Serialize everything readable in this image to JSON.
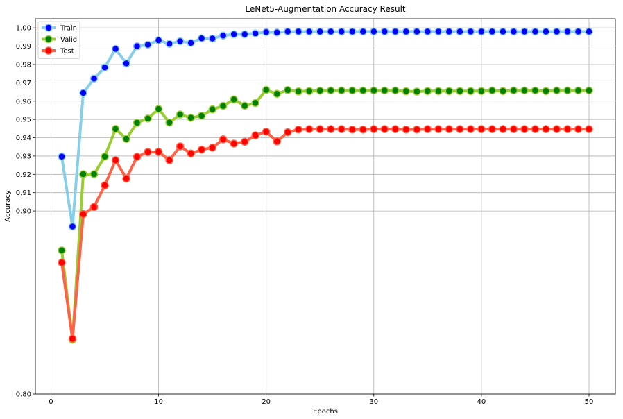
{
  "chart_data": {
    "type": "line",
    "title": "LeNet5-Augmentation Accuracy Result",
    "xlabel": "Epochs",
    "ylabel": "Accuracy",
    "xlim": [
      -1.45,
      52.45
    ],
    "ylim": [
      0.8,
      1.005
    ],
    "xticks": [
      0,
      10,
      20,
      30,
      40,
      50
    ],
    "xtick_labels": [
      "0",
      "10",
      "20",
      "30",
      "40",
      "50"
    ],
    "yticks": [
      0.8,
      0.9,
      0.91,
      0.92,
      0.93,
      0.94,
      0.95,
      0.96,
      0.97,
      0.98,
      0.99,
      1.0
    ],
    "ytick_labels": [
      "0.80",
      "0.90",
      "0.91",
      "0.92",
      "0.93",
      "0.94",
      "0.95",
      "0.96",
      "0.97",
      "0.98",
      "0.99",
      "1.00"
    ],
    "grid": true,
    "legend_position": "top-left",
    "x": [
      1,
      2,
      3,
      4,
      5,
      6,
      7,
      8,
      9,
      10,
      11,
      12,
      13,
      14,
      15,
      16,
      17,
      18,
      19,
      20,
      21,
      22,
      23,
      24,
      25,
      26,
      27,
      28,
      29,
      30,
      31,
      32,
      33,
      34,
      35,
      36,
      37,
      38,
      39,
      40,
      41,
      42,
      43,
      44,
      45,
      46,
      47,
      48,
      49,
      50
    ],
    "series": [
      {
        "name": "Train",
        "line_color": "#87ceeb",
        "marker_color": "#0000ff",
        "values": [
          0.9297,
          0.8915,
          0.9645,
          0.9723,
          0.9784,
          0.9885,
          0.9806,
          0.99,
          0.9908,
          0.9932,
          0.9913,
          0.9927,
          0.9918,
          0.9943,
          0.9942,
          0.9958,
          0.9965,
          0.9965,
          0.997,
          0.9977,
          0.9975,
          0.998,
          0.998,
          0.998,
          0.998,
          0.998,
          0.998,
          0.998,
          0.998,
          0.998,
          0.998,
          0.998,
          0.998,
          0.998,
          0.998,
          0.998,
          0.998,
          0.998,
          0.998,
          0.998,
          0.998,
          0.998,
          0.998,
          0.998,
          0.998,
          0.998,
          0.998,
          0.998,
          0.998,
          0.998
        ]
      },
      {
        "name": "Valid",
        "line_color": "#9acd32",
        "marker_color": "#008000",
        "values": [
          0.8785,
          0.8297,
          0.9201,
          0.9201,
          0.9297,
          0.9448,
          0.9394,
          0.9482,
          0.9505,
          0.9557,
          0.9483,
          0.9527,
          0.9509,
          0.952,
          0.9555,
          0.9574,
          0.9609,
          0.9575,
          0.959,
          0.9661,
          0.964,
          0.966,
          0.9653,
          0.9655,
          0.9657,
          0.9658,
          0.9658,
          0.9658,
          0.9658,
          0.9658,
          0.9658,
          0.9658,
          0.9654,
          0.9652,
          0.9655,
          0.9655,
          0.9655,
          0.9655,
          0.9655,
          0.9655,
          0.9658,
          0.9655,
          0.9658,
          0.9658,
          0.9658,
          0.9655,
          0.9658,
          0.9658,
          0.9658,
          0.9658
        ]
      },
      {
        "name": "Test",
        "line_color": "#ff6347",
        "marker_color": "#ff0000",
        "values": [
          0.8718,
          0.8302,
          0.8983,
          0.9022,
          0.914,
          0.9277,
          0.9177,
          0.9296,
          0.9322,
          0.9323,
          0.9277,
          0.9353,
          0.9314,
          0.9335,
          0.9346,
          0.9391,
          0.9368,
          0.9378,
          0.9413,
          0.9433,
          0.938,
          0.943,
          0.9445,
          0.9447,
          0.9447,
          0.9447,
          0.9447,
          0.9445,
          0.9445,
          0.9447,
          0.9447,
          0.9447,
          0.9445,
          0.9445,
          0.9447,
          0.9447,
          0.9447,
          0.9447,
          0.9447,
          0.9447,
          0.9447,
          0.9447,
          0.9447,
          0.9447,
          0.9447,
          0.9447,
          0.9447,
          0.9447,
          0.9447,
          0.9447
        ]
      }
    ]
  }
}
